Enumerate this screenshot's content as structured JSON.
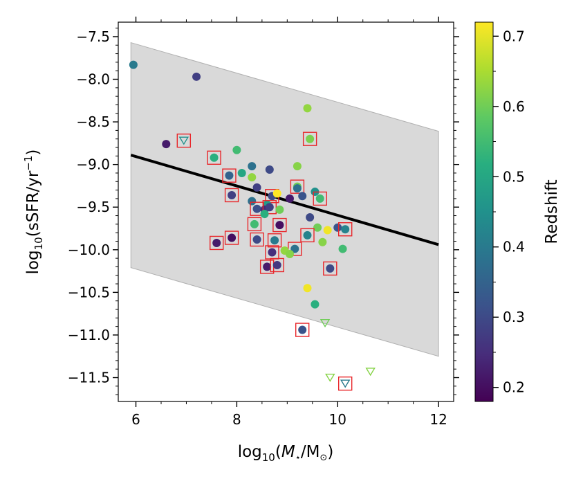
{
  "chart_data": {
    "type": "scatter",
    "xlabel": "log10(M⋆/M⊙)",
    "ylabel": "log10(sSFR/yr−1)",
    "xlim": [
      5.65,
      12.3
    ],
    "ylim": [
      -11.78,
      -7.33
    ],
    "x_ticks": [
      6,
      8,
      10,
      12
    ],
    "y_ticks": [
      -7.5,
      -8.0,
      -8.5,
      -9.0,
      -9.5,
      -10.0,
      -10.5,
      -11.0,
      -11.5
    ],
    "grid": false,
    "colorbar": {
      "label": "Redshift",
      "range": [
        0.18,
        0.72
      ],
      "ticks": [
        0.2,
        0.3,
        0.4,
        0.5,
        0.6,
        0.7
      ],
      "colormap": "viridis"
    },
    "fit_line": {
      "x": [
        5.9,
        12.0
      ],
      "y": [
        -8.89,
        -9.94
      ],
      "color": "#000000"
    },
    "band": {
      "x": [
        5.9,
        12.0
      ],
      "upper": [
        -7.57,
        -8.61
      ],
      "lower": [
        -10.21,
        -11.25
      ],
      "color": "#d9d9d9"
    },
    "points": [
      {
        "x": 5.95,
        "y": -7.83,
        "z": 0.4
      },
      {
        "x": 7.2,
        "y": -7.97,
        "z": 0.28
      },
      {
        "x": 6.6,
        "y": -8.76,
        "z": 0.22
      },
      {
        "x": 9.4,
        "y": -8.34,
        "z": 0.63
      },
      {
        "x": 9.45,
        "y": -8.7,
        "z": 0.61,
        "boxed": true
      },
      {
        "x": 8.0,
        "y": -8.83,
        "z": 0.55
      },
      {
        "x": 7.55,
        "y": -8.92,
        "z": 0.52,
        "boxed": true
      },
      {
        "x": 8.3,
        "y": -9.02,
        "z": 0.38
      },
      {
        "x": 8.1,
        "y": -9.1,
        "z": 0.5
      },
      {
        "x": 9.2,
        "y": -9.02,
        "z": 0.62
      },
      {
        "x": 7.85,
        "y": -9.13,
        "z": 0.35,
        "boxed": true
      },
      {
        "x": 8.65,
        "y": -9.06,
        "z": 0.3
      },
      {
        "x": 8.3,
        "y": -9.15,
        "z": 0.63
      },
      {
        "x": 9.2,
        "y": -9.26,
        "z": 0.6,
        "boxed": true
      },
      {
        "x": 9.2,
        "y": -9.28,
        "z": 0.38
      },
      {
        "x": 8.4,
        "y": -9.27,
        "z": 0.28
      },
      {
        "x": 9.55,
        "y": -9.32,
        "z": 0.45
      },
      {
        "x": 9.3,
        "y": -9.37,
        "z": 0.32
      },
      {
        "x": 7.9,
        "y": -9.36,
        "z": 0.28,
        "boxed": true
      },
      {
        "x": 8.7,
        "y": -9.37,
        "z": 0.3,
        "boxed": true
      },
      {
        "x": 8.8,
        "y": -9.34,
        "z": 0.72
      },
      {
        "x": 9.65,
        "y": -9.4,
        "z": 0.55,
        "boxed": true
      },
      {
        "x": 9.05,
        "y": -9.4,
        "z": 0.22
      },
      {
        "x": 8.3,
        "y": -9.43,
        "z": 0.38
      },
      {
        "x": 8.6,
        "y": -9.47,
        "z": 0.48
      },
      {
        "x": 8.4,
        "y": -9.52,
        "z": 0.31,
        "boxed": true
      },
      {
        "x": 8.55,
        "y": -9.53,
        "z": 0.24
      },
      {
        "x": 8.65,
        "y": -9.5,
        "z": 0.28,
        "boxed": true
      },
      {
        "x": 8.85,
        "y": -9.53,
        "z": 0.6
      },
      {
        "x": 8.55,
        "y": -9.58,
        "z": 0.52
      },
      {
        "x": 9.45,
        "y": -9.62,
        "z": 0.3
      },
      {
        "x": 8.35,
        "y": -9.7,
        "z": 0.55,
        "boxed": true
      },
      {
        "x": 8.85,
        "y": -9.71,
        "z": 0.2,
        "boxed": true
      },
      {
        "x": 9.6,
        "y": -9.74,
        "z": 0.6
      },
      {
        "x": 10.0,
        "y": -9.74,
        "z": 0.32
      },
      {
        "x": 10.15,
        "y": -9.76,
        "z": 0.42,
        "boxed": true
      },
      {
        "x": 9.8,
        "y": -9.77,
        "z": 0.71
      },
      {
        "x": 9.4,
        "y": -9.83,
        "z": 0.42,
        "boxed": true
      },
      {
        "x": 7.9,
        "y": -9.86,
        "z": 0.2,
        "boxed": true
      },
      {
        "x": 8.4,
        "y": -9.88,
        "z": 0.3,
        "boxed": true
      },
      {
        "x": 8.75,
        "y": -9.89,
        "z": 0.4,
        "boxed": true
      },
      {
        "x": 7.6,
        "y": -9.92,
        "z": 0.22,
        "boxed": true
      },
      {
        "x": 9.7,
        "y": -9.91,
        "z": 0.62
      },
      {
        "x": 9.15,
        "y": -9.99,
        "z": 0.38,
        "boxed": true
      },
      {
        "x": 10.1,
        "y": -9.99,
        "z": 0.55
      },
      {
        "x": 8.95,
        "y": -10.01,
        "z": 0.63
      },
      {
        "x": 9.05,
        "y": -10.05,
        "z": 0.62
      },
      {
        "x": 8.7,
        "y": -10.03,
        "z": 0.25,
        "boxed": true
      },
      {
        "x": 8.6,
        "y": -10.2,
        "z": 0.22,
        "boxed": true
      },
      {
        "x": 8.8,
        "y": -10.18,
        "z": 0.27,
        "boxed": true
      },
      {
        "x": 9.85,
        "y": -10.22,
        "z": 0.3,
        "boxed": true
      },
      {
        "x": 9.4,
        "y": -10.45,
        "z": 0.71
      },
      {
        "x": 9.55,
        "y": -10.64,
        "z": 0.52
      },
      {
        "x": 9.3,
        "y": -10.94,
        "z": 0.32,
        "boxed": true
      }
    ],
    "upper_limits": [
      {
        "x": 6.95,
        "y": -8.72,
        "z": 0.45,
        "boxed": true
      },
      {
        "x": 9.75,
        "y": -10.86,
        "z": 0.6
      },
      {
        "x": 9.85,
        "y": -11.5,
        "z": 0.62
      },
      {
        "x": 10.65,
        "y": -11.43,
        "z": 0.62
      },
      {
        "x": 10.15,
        "y": -11.57,
        "z": 0.4,
        "boxed": true
      }
    ]
  }
}
